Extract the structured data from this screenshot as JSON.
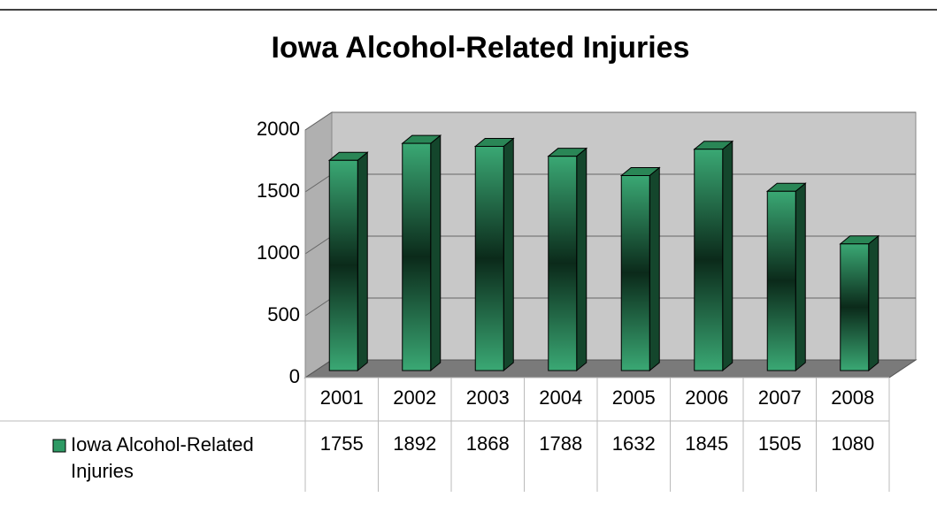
{
  "chart_data": {
    "type": "bar",
    "title": "Iowa Alcohol-Related Injuries",
    "categories": [
      "2001",
      "2002",
      "2003",
      "2004",
      "2005",
      "2006",
      "2007",
      "2008"
    ],
    "series": [
      {
        "name": "Iowa Alcohol-Related Injuries",
        "color": "#2e9a64",
        "values": [
          1755,
          1892,
          1868,
          1788,
          1632,
          1845,
          1505,
          1080
        ]
      }
    ],
    "ylim": [
      0,
      2000
    ],
    "yticks": [
      0,
      500,
      1000,
      1500,
      2000
    ],
    "grid": true
  }
}
